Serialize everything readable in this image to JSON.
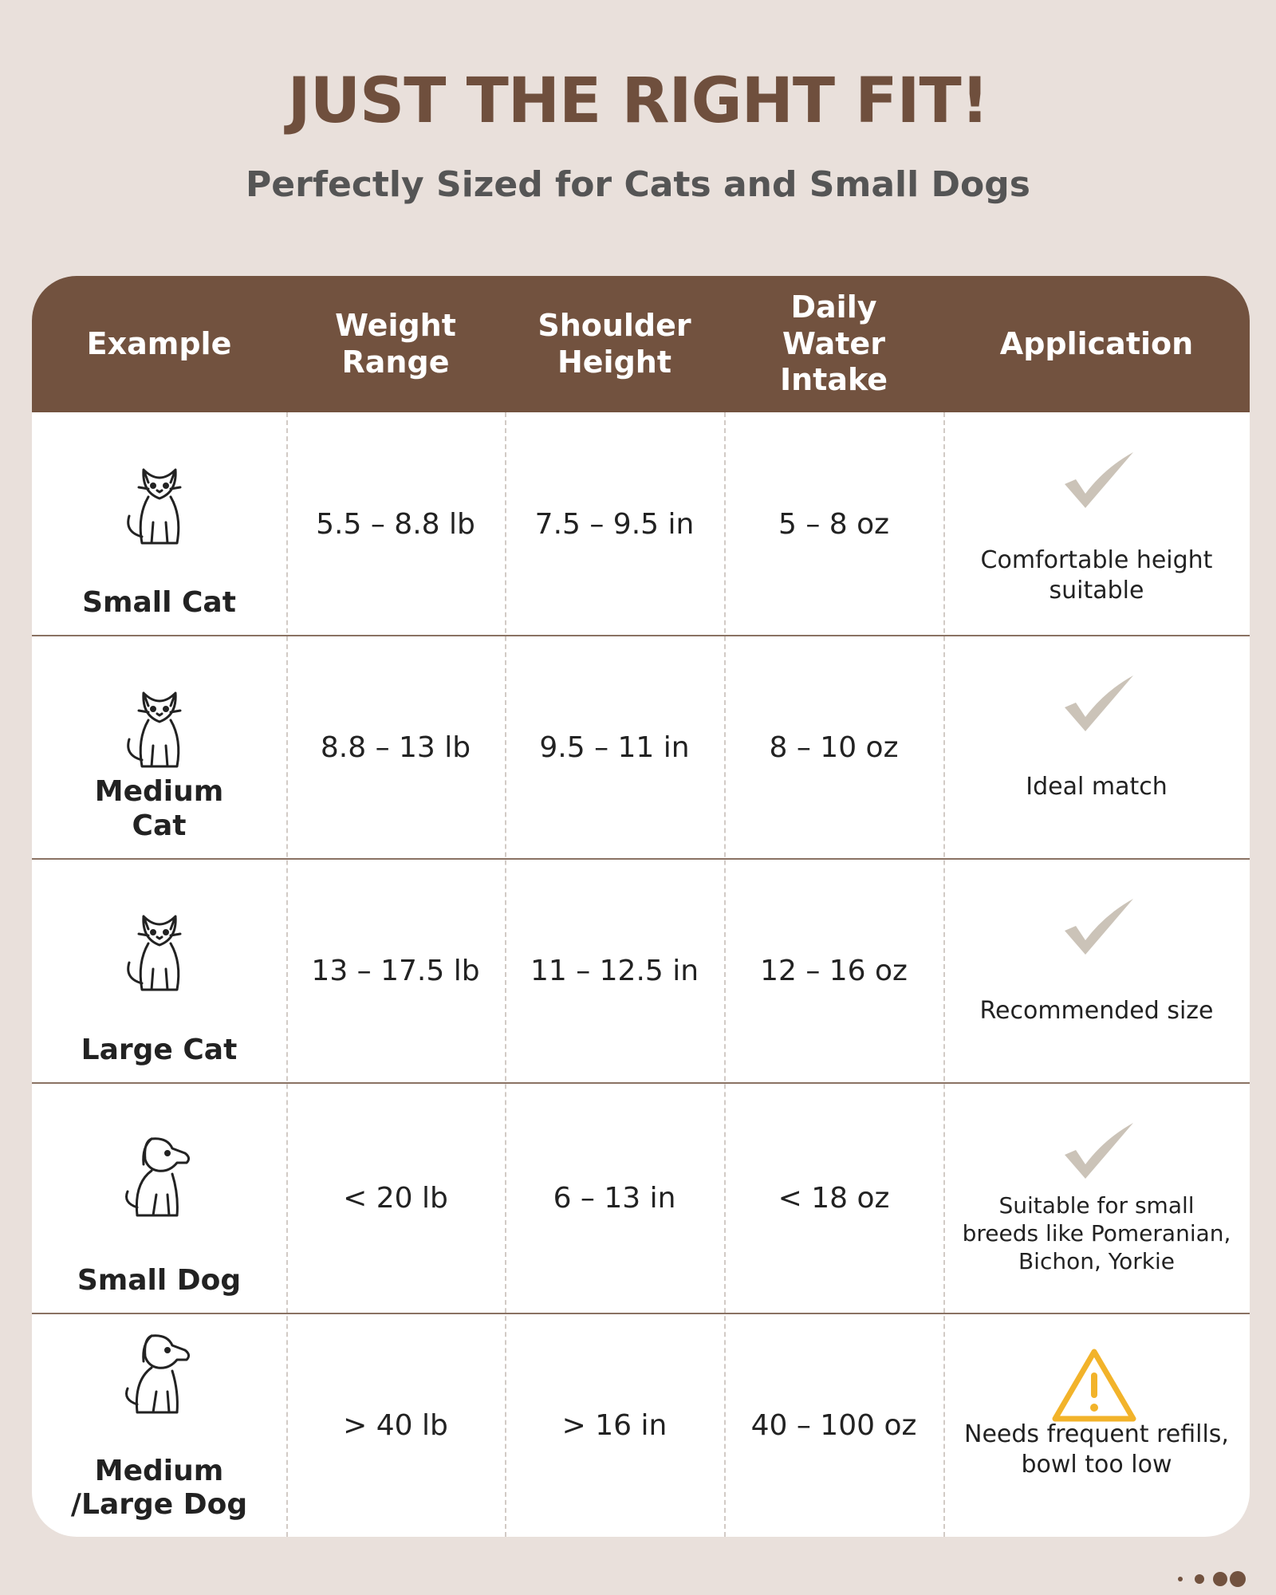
{
  "header": {
    "title": "JUST THE RIGHT FIT!",
    "subtitle": "Perfectly Sized for Cats and Small Dogs"
  },
  "table": {
    "columns": [
      "Example",
      "Weight Range",
      "Shoulder Height",
      "Daily Water Intake",
      "Application"
    ],
    "rows": [
      {
        "example": "Small Cat",
        "weight": "5.5 – 8.8 lb",
        "height": "7.5 – 9.5 in",
        "water": "5 – 8 oz",
        "application": "Comfortable height suitable"
      },
      {
        "example": "Medium Cat",
        "weight": "8.8 – 13 lb",
        "height": "9.5 – 11 in",
        "water": "8 – 10 oz",
        "application": "Ideal match"
      },
      {
        "example": "Large Cat",
        "weight": "13 – 17.5 lb",
        "height": "11 – 12.5 in",
        "water": "12 – 16 oz",
        "application": "Recommended size"
      },
      {
        "example": "Small Dog",
        "weight": "< 20 lb",
        "height": "6 – 13 in",
        "water": "< 18 oz",
        "application": "Suitable for small breeds like Pomeranian, Bichon, Yorkie"
      },
      {
        "example": "Medium /Large Dog",
        "weight": "> 40 lb",
        "height": "> 16 in",
        "water": "40 – 100 oz",
        "application": "Needs frequent refills, bowl too low"
      }
    ]
  }
}
